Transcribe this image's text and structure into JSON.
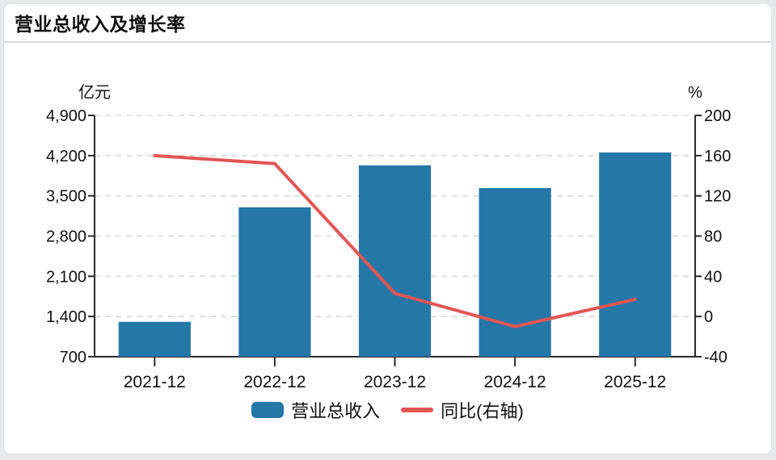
{
  "page": {
    "background": "#e8e9eb",
    "card_background": "#ffffff"
  },
  "header": {
    "title": "营业总收入及增长率"
  },
  "chart_data": {
    "type": "bar",
    "title": "营业总收入及增长率",
    "categories": [
      "2021-12",
      "2022-12",
      "2023-12",
      "2024-12",
      "2025-12"
    ],
    "series": [
      {
        "name": "营业总收入",
        "kind": "bar",
        "axis": "left",
        "color": "#2477a7",
        "values": [
          1307,
          3300,
          4030,
          3635,
          4255
        ]
      },
      {
        "name": "同比(右轴)",
        "kind": "line",
        "axis": "right",
        "color": "#e25654",
        "values": [
          160,
          152,
          23,
          -10,
          17
        ]
      }
    ],
    "left_axis": {
      "unit": "亿元",
      "min": 700,
      "max": 4900,
      "tick_labels": [
        "4,900",
        "4,200",
        "3,500",
        "2,800",
        "2,100",
        "1,400",
        "700"
      ]
    },
    "right_axis": {
      "unit": "%",
      "min": -40,
      "max": 200,
      "tick_labels": [
        "200",
        "160",
        "120",
        "80",
        "40",
        "0",
        "-40"
      ]
    },
    "grid": "dashed-horizontal",
    "gridline_color": "#d8d8d8",
    "axis_color": "#2a2a2a",
    "legend_position": "bottom"
  }
}
